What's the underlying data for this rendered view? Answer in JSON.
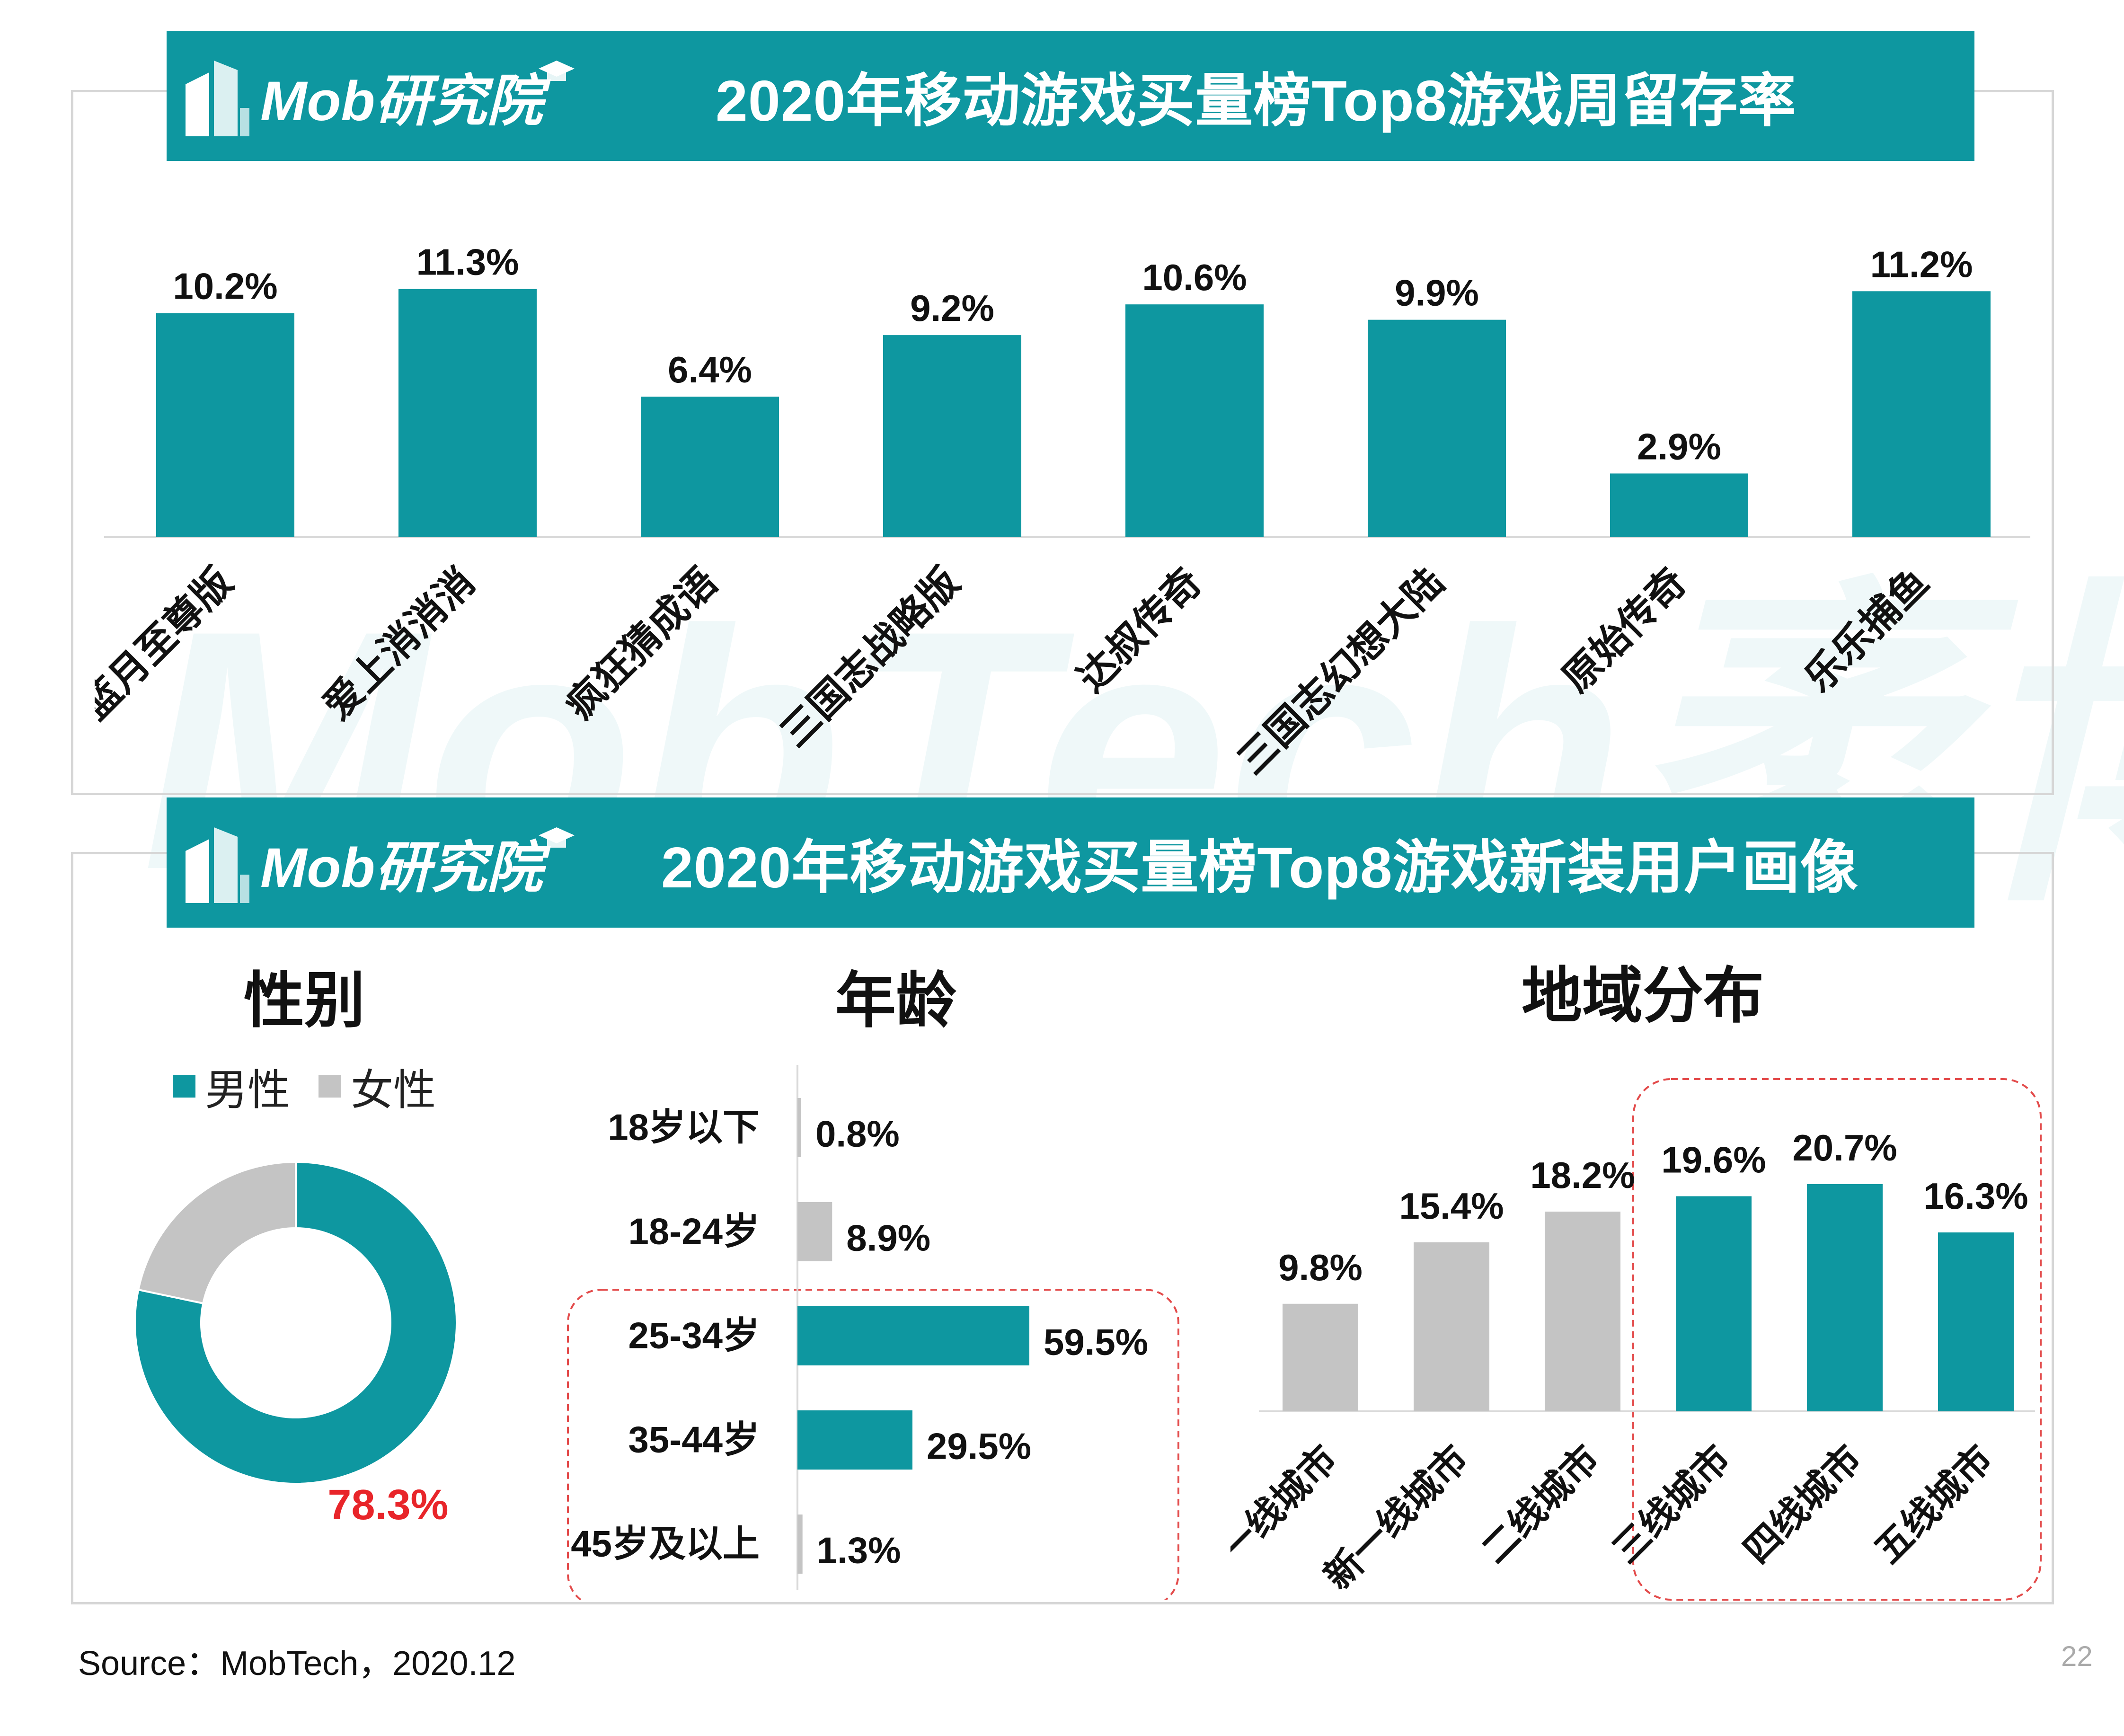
{
  "brand": {
    "logo_text": "Mob研究院",
    "watermark": "MobTech袤博"
  },
  "top": {
    "banner_title": "2020年移动游戏买量榜Top8游戏周留存率"
  },
  "bottom": {
    "banner_title": "2020年移动游戏买量榜Top8游戏新装用户画像",
    "gender": {
      "title": "性别",
      "legend": [
        "男性",
        "女性"
      ],
      "label": "78.3%"
    },
    "age": {
      "title": "年龄"
    },
    "region": {
      "title": "地域分布"
    }
  },
  "footer": {
    "source": "Source：MobTech，2020.12",
    "page": "22"
  },
  "colors": {
    "teal": "#0e97a0",
    "gray": "#c4c4c4",
    "highlight_red": "#e8252a",
    "dash_red": "#e34b4b"
  },
  "chart_data": [
    {
      "type": "bar",
      "categories": [
        "蓝月至尊版",
        "爱上消消消",
        "疯狂猜成语",
        "三国志战略版",
        "达叔传奇",
        "三国志幻想大陆",
        "原始传奇",
        "乐乐捕鱼"
      ],
      "values": [
        10.2,
        11.3,
        6.4,
        9.2,
        10.6,
        9.9,
        2.9,
        11.2
      ],
      "labels": [
        "10.2%",
        "11.3%",
        "6.4%",
        "9.2%",
        "10.6%",
        "9.9%",
        "2.9%",
        "11.2%"
      ],
      "ylim": [
        0,
        12.5
      ]
    },
    {
      "type": "pie",
      "categories": [
        "男性",
        "女性"
      ],
      "values": [
        78.3,
        21.7
      ],
      "colors": [
        "#0e97a0",
        "#c4c4c4"
      ]
    },
    {
      "type": "bar",
      "orientation": "horizontal",
      "categories": [
        "18岁以下",
        "18-24岁",
        "25-34岁",
        "35-44岁",
        "45岁及以上"
      ],
      "values": [
        0.8,
        8.9,
        59.5,
        29.5,
        1.3
      ],
      "labels": [
        "0.8%",
        "8.9%",
        "59.5%",
        "29.5%",
        "1.3%"
      ],
      "colors": [
        "#c4c4c4",
        "#c4c4c4",
        "#0e97a0",
        "#0e97a0",
        "#c4c4c4"
      ],
      "highlighted": [
        "25-34岁",
        "35-44岁",
        "45岁及以上"
      ]
    },
    {
      "type": "bar",
      "categories": [
        "一线城市",
        "新一线城市",
        "二线城市",
        "三线城市",
        "四线城市",
        "五线城市"
      ],
      "values": [
        9.8,
        15.4,
        18.2,
        19.6,
        20.7,
        16.3
      ],
      "labels": [
        "9.8%",
        "15.4%",
        "18.2%",
        "19.6%",
        "20.7%",
        "16.3%"
      ],
      "colors": [
        "#c4c4c4",
        "#c4c4c4",
        "#c4c4c4",
        "#0e97a0",
        "#0e97a0",
        "#0e97a0"
      ],
      "highlighted": [
        "三线城市",
        "四线城市",
        "五线城市"
      ]
    }
  ]
}
